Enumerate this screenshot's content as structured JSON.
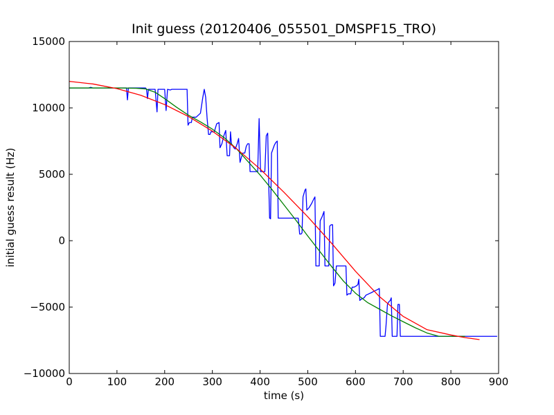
{
  "chart_data": {
    "type": "line",
    "title": "Init guess (20120406_055501_DMSPF15_TRO)",
    "xlabel": "time (s)",
    "ylabel": "initial guess result (Hz)",
    "xlim": [
      0,
      900
    ],
    "ylim": [
      -10000,
      15000
    ],
    "xticks": [
      0,
      100,
      200,
      300,
      400,
      500,
      600,
      700,
      800,
      900
    ],
    "yticks": [
      -10000,
      -5000,
      0,
      5000,
      10000,
      15000
    ],
    "grid": false,
    "legend": "none",
    "series": [
      {
        "color": "#0000ff",
        "points": [
          [
            0,
            11500
          ],
          [
            40,
            11500
          ],
          [
            45,
            11550
          ],
          [
            50,
            11500
          ],
          [
            120,
            11500
          ],
          [
            122,
            10600
          ],
          [
            124,
            11500
          ],
          [
            160,
            11500
          ],
          [
            162,
            11400
          ],
          [
            164,
            10700
          ],
          [
            166,
            11400
          ],
          [
            180,
            11400
          ],
          [
            184,
            9700
          ],
          [
            186,
            11400
          ],
          [
            200,
            11400
          ],
          [
            203,
            9800
          ],
          [
            206,
            11400
          ],
          [
            212,
            11350
          ],
          [
            215,
            11400
          ],
          [
            247,
            11400
          ],
          [
            249,
            8700
          ],
          [
            252,
            8900
          ],
          [
            256,
            8900
          ],
          [
            258,
            9300
          ],
          [
            262,
            9300
          ],
          [
            266,
            9300
          ],
          [
            275,
            9600
          ],
          [
            280,
            10800
          ],
          [
            283,
            11400
          ],
          [
            286,
            10800
          ],
          [
            289,
            9200
          ],
          [
            292,
            8000
          ],
          [
            295,
            8000
          ],
          [
            297,
            8200
          ],
          [
            300,
            8200
          ],
          [
            304,
            8200
          ],
          [
            309,
            8800
          ],
          [
            314,
            8900
          ],
          [
            316,
            7000
          ],
          [
            320,
            7300
          ],
          [
            324,
            7900
          ],
          [
            328,
            8300
          ],
          [
            331,
            6400
          ],
          [
            336,
            6400
          ],
          [
            338,
            8200
          ],
          [
            340,
            7300
          ],
          [
            342,
            7200
          ],
          [
            345,
            7000
          ],
          [
            348,
            6900
          ],
          [
            352,
            7300
          ],
          [
            355,
            7700
          ],
          [
            358,
            5900
          ],
          [
            361,
            6300
          ],
          [
            364,
            6600
          ],
          [
            368,
            6600
          ],
          [
            371,
            7100
          ],
          [
            374,
            7300
          ],
          [
            377,
            7300
          ],
          [
            379,
            5200
          ],
          [
            395,
            5200
          ],
          [
            398,
            9200
          ],
          [
            401,
            5200
          ],
          [
            410,
            5200
          ],
          [
            413,
            7900
          ],
          [
            416,
            8100
          ],
          [
            418,
            4500
          ],
          [
            420,
            1700
          ],
          [
            422,
            1650
          ],
          [
            424,
            6600
          ],
          [
            427,
            6900
          ],
          [
            430,
            7200
          ],
          [
            433,
            7400
          ],
          [
            436,
            7500
          ],
          [
            438,
            1700
          ],
          [
            480,
            1700
          ],
          [
            483,
            500
          ],
          [
            486,
            500
          ],
          [
            488,
            600
          ],
          [
            490,
            3300
          ],
          [
            494,
            3800
          ],
          [
            496,
            3900
          ],
          [
            498,
            2300
          ],
          [
            503,
            2500
          ],
          [
            508,
            2800
          ],
          [
            512,
            3100
          ],
          [
            515,
            3300
          ],
          [
            517,
            -1900
          ],
          [
            524,
            -1900
          ],
          [
            526,
            1500
          ],
          [
            530,
            1800
          ],
          [
            534,
            2200
          ],
          [
            536,
            -1900
          ],
          [
            544,
            -1900
          ],
          [
            546,
            1100
          ],
          [
            549,
            1200
          ],
          [
            552,
            1200
          ],
          [
            554,
            -3400
          ],
          [
            557,
            -3200
          ],
          [
            560,
            -1900
          ],
          [
            580,
            -1900
          ],
          [
            582,
            -4100
          ],
          [
            585,
            -4000
          ],
          [
            590,
            -4000
          ],
          [
            593,
            -3500
          ],
          [
            597,
            -3500
          ],
          [
            602,
            -3400
          ],
          [
            605,
            -3300
          ],
          [
            607,
            -2900
          ],
          [
            609,
            -4500
          ],
          [
            612,
            -4400
          ],
          [
            618,
            -4300
          ],
          [
            622,
            -4100
          ],
          [
            628,
            -4000
          ],
          [
            634,
            -3900
          ],
          [
            639,
            -3800
          ],
          [
            645,
            -3700
          ],
          [
            650,
            -3600
          ],
          [
            652,
            -7200
          ],
          [
            662,
            -7200
          ],
          [
            664,
            -6400
          ],
          [
            667,
            -4800
          ],
          [
            670,
            -4600
          ],
          [
            673,
            -4500
          ],
          [
            675,
            -4300
          ],
          [
            677,
            -7200
          ],
          [
            687,
            -7200
          ],
          [
            689,
            -4800
          ],
          [
            692,
            -4800
          ],
          [
            694,
            -7200
          ],
          [
            897,
            -7200
          ]
        ]
      },
      {
        "color": "#008000",
        "points": [
          [
            0,
            11500
          ],
          [
            50,
            11500
          ],
          [
            100,
            11500
          ],
          [
            140,
            11480
          ],
          [
            160,
            11430
          ],
          [
            180,
            11180
          ],
          [
            200,
            10700
          ],
          [
            225,
            10050
          ],
          [
            250,
            9450
          ],
          [
            275,
            8950
          ],
          [
            300,
            8400
          ],
          [
            325,
            7750
          ],
          [
            350,
            6950
          ],
          [
            375,
            5950
          ],
          [
            400,
            4950
          ],
          [
            425,
            3850
          ],
          [
            450,
            2700
          ],
          [
            475,
            1550
          ],
          [
            500,
            350
          ],
          [
            525,
            -800
          ],
          [
            550,
            -1950
          ],
          [
            575,
            -3050
          ],
          [
            600,
            -3950
          ],
          [
            625,
            -4650
          ],
          [
            650,
            -5150
          ],
          [
            675,
            -5650
          ],
          [
            700,
            -6100
          ],
          [
            725,
            -6550
          ],
          [
            750,
            -6950
          ],
          [
            775,
            -7200
          ],
          [
            800,
            -7200
          ],
          [
            830,
            -7200
          ]
        ]
      },
      {
        "color": "#ff0000",
        "points": [
          [
            0,
            12000
          ],
          [
            50,
            11800
          ],
          [
            100,
            11450
          ],
          [
            150,
            10950
          ],
          [
            200,
            10250
          ],
          [
            250,
            9350
          ],
          [
            300,
            8250
          ],
          [
            350,
            6950
          ],
          [
            400,
            5400
          ],
          [
            450,
            3650
          ],
          [
            500,
            1800
          ],
          [
            550,
            -200
          ],
          [
            600,
            -2300
          ],
          [
            650,
            -4200
          ],
          [
            700,
            -5700
          ],
          [
            750,
            -6700
          ],
          [
            800,
            -7100
          ],
          [
            830,
            -7300
          ],
          [
            860,
            -7450
          ]
        ]
      }
    ]
  }
}
